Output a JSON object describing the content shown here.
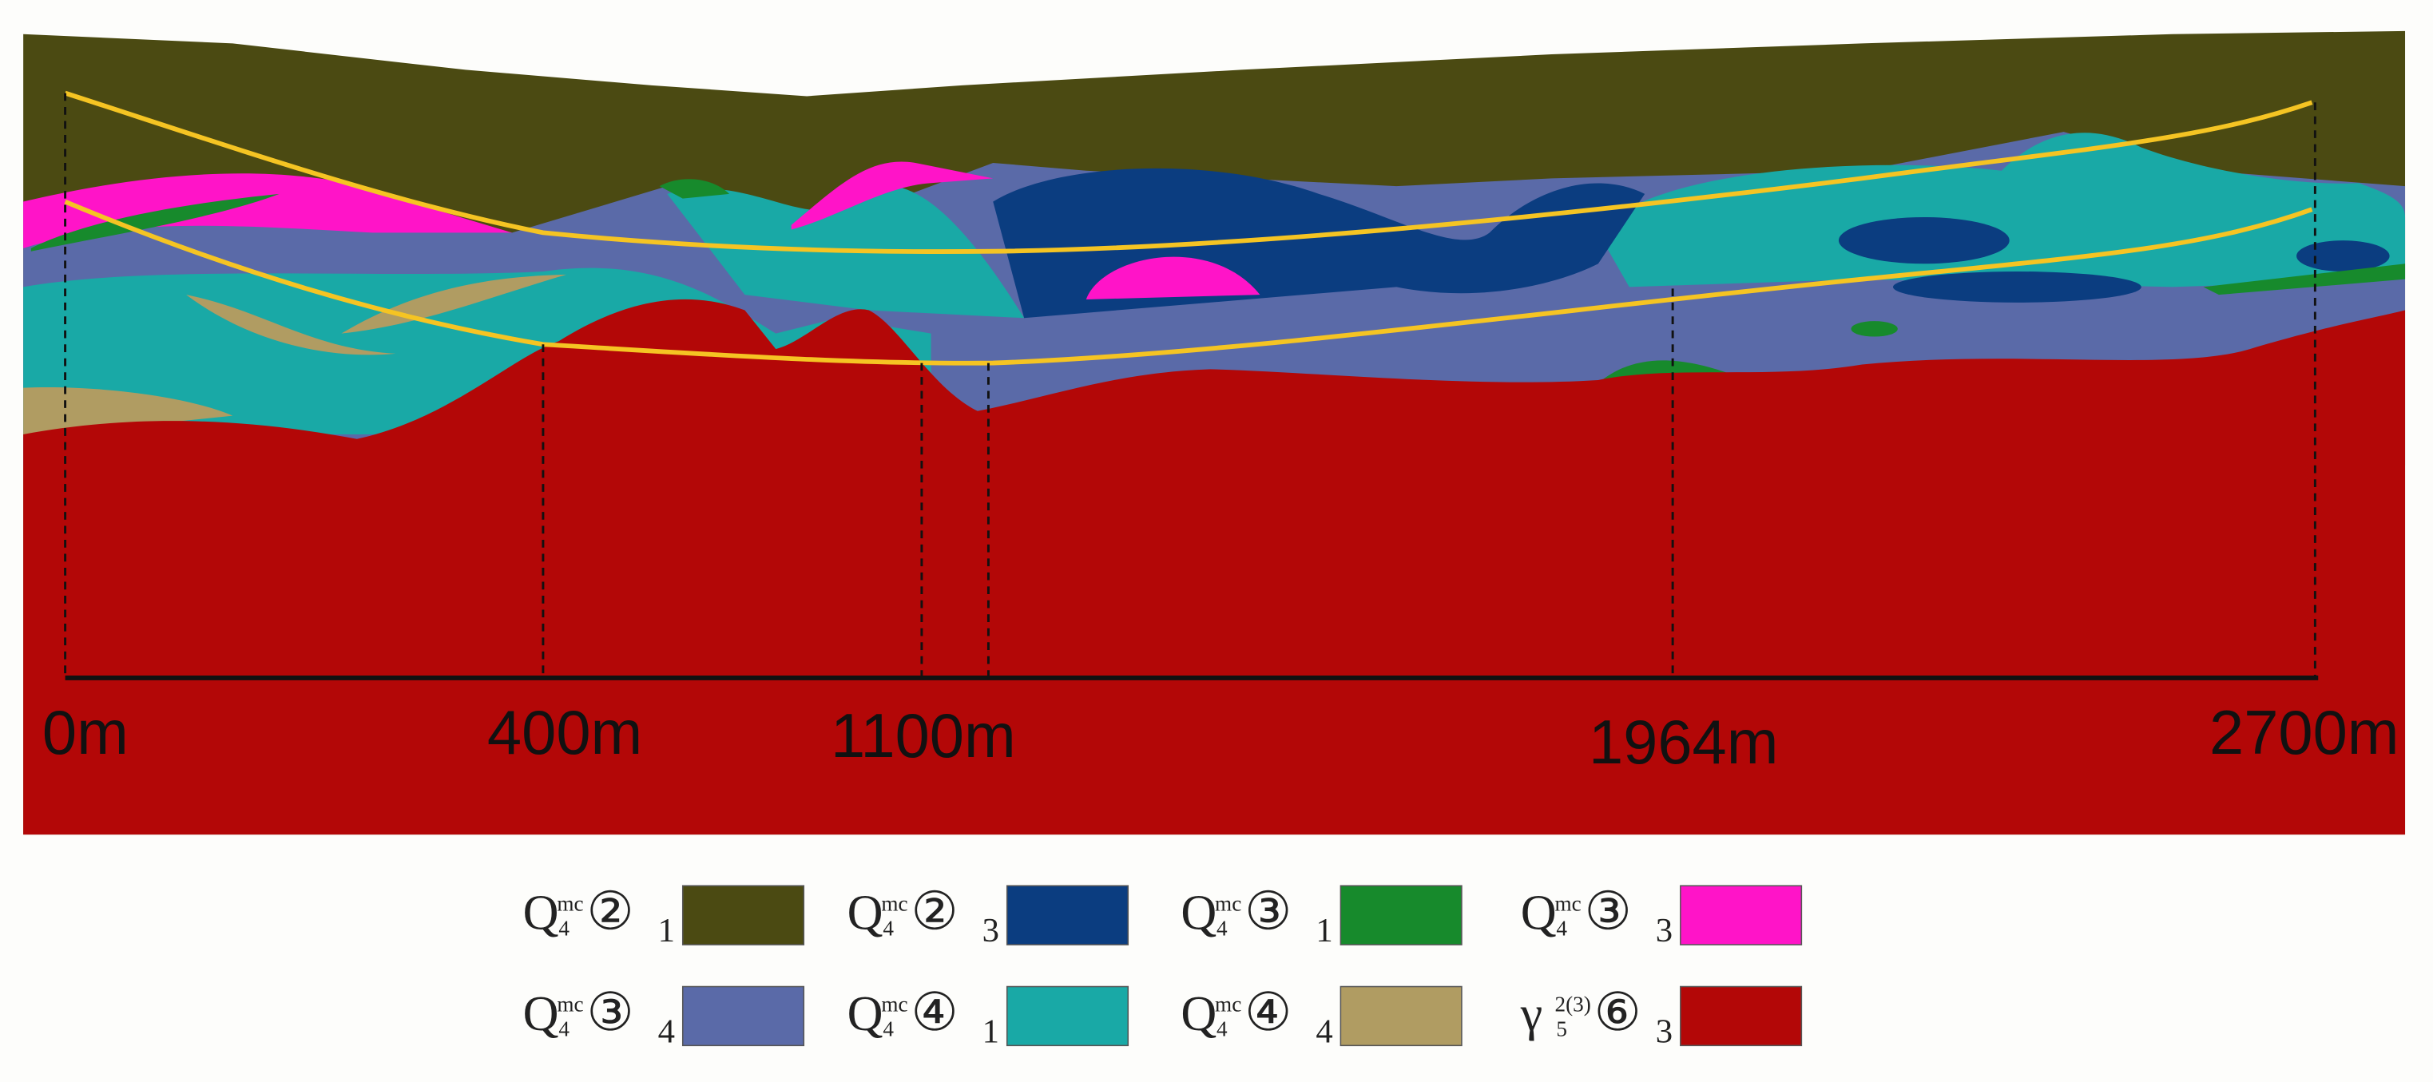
{
  "section": {
    "distance_labels": [
      "0m",
      "400m",
      "1100m",
      "1964m",
      "2700m"
    ]
  },
  "legend": [
    {
      "base": "Q",
      "sup": "mc",
      "sub": "4",
      "circled": "②",
      "index": "1",
      "color": "#4b4a12"
    },
    {
      "base": "Q",
      "sup": "mc",
      "sub": "4",
      "circled": "②",
      "index": "3",
      "color": "#0b3d80"
    },
    {
      "base": "Q",
      "sup": "mc",
      "sub": "4",
      "circled": "③",
      "index": "1",
      "color": "#178a2c"
    },
    {
      "base": "Q",
      "sup": "mc",
      "sub": "4",
      "circled": "③",
      "index": "3",
      "color": "#ff14c8"
    },
    {
      "base": "Q",
      "sup": "mc",
      "sub": "4",
      "circled": "③",
      "index": "4",
      "color": "#5a6aa8"
    },
    {
      "base": "Q",
      "sup": "mc",
      "sub": "4",
      "circled": "④",
      "index": "1",
      "color": "#19a9a6"
    },
    {
      "base": "Q",
      "sup": "mc",
      "sub": "4",
      "circled": "④",
      "index": "4",
      "color": "#b09c62"
    },
    {
      "base": "γ",
      "sup": "2(3)",
      "sub": "5",
      "circled": "⑥",
      "index": "3",
      "color": "#b30707"
    }
  ]
}
